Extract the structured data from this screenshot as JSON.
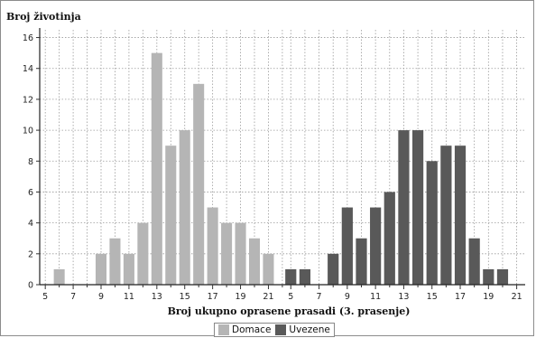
{
  "chart_data": {
    "type": "bar",
    "ylabel": "Broj životinja",
    "xlabel": "Broj ukupno oprasene prasadi (3. prasenje)",
    "ylim": [
      0,
      16.5
    ],
    "yticks": [
      0,
      2,
      4,
      6,
      8,
      10,
      12,
      14,
      16
    ],
    "grid": true,
    "legend_position": "bottom",
    "panels": [
      {
        "series_name": "Domace",
        "color": "#b5b5b5",
        "xlim": [
          4.6,
          22.2
        ],
        "xticks": [
          5,
          7,
          9,
          11,
          13,
          15,
          17,
          19,
          21
        ],
        "x": [
          6,
          9,
          10,
          11,
          12,
          13,
          14,
          15,
          16,
          17,
          18,
          19,
          20,
          21
        ],
        "values": [
          1,
          2,
          3,
          2,
          4,
          15,
          9,
          10,
          13,
          5,
          4,
          4,
          3,
          2
        ]
      },
      {
        "series_name": "Uvezene",
        "color": "#595959",
        "xlim": [
          4.6,
          21.6
        ],
        "xticks": [
          5,
          7,
          9,
          11,
          13,
          15,
          17,
          19,
          21
        ],
        "x": [
          5,
          6,
          8,
          9,
          10,
          11,
          12,
          13,
          14,
          15,
          16,
          17,
          18,
          19,
          20
        ],
        "values": [
          1,
          1,
          2,
          5,
          3,
          5,
          6,
          10,
          10,
          8,
          9,
          9,
          3,
          1,
          1
        ]
      }
    ],
    "legend": [
      {
        "label": "Domace",
        "color": "#b5b5b5"
      },
      {
        "label": "Uvezene",
        "color": "#595959"
      }
    ]
  }
}
